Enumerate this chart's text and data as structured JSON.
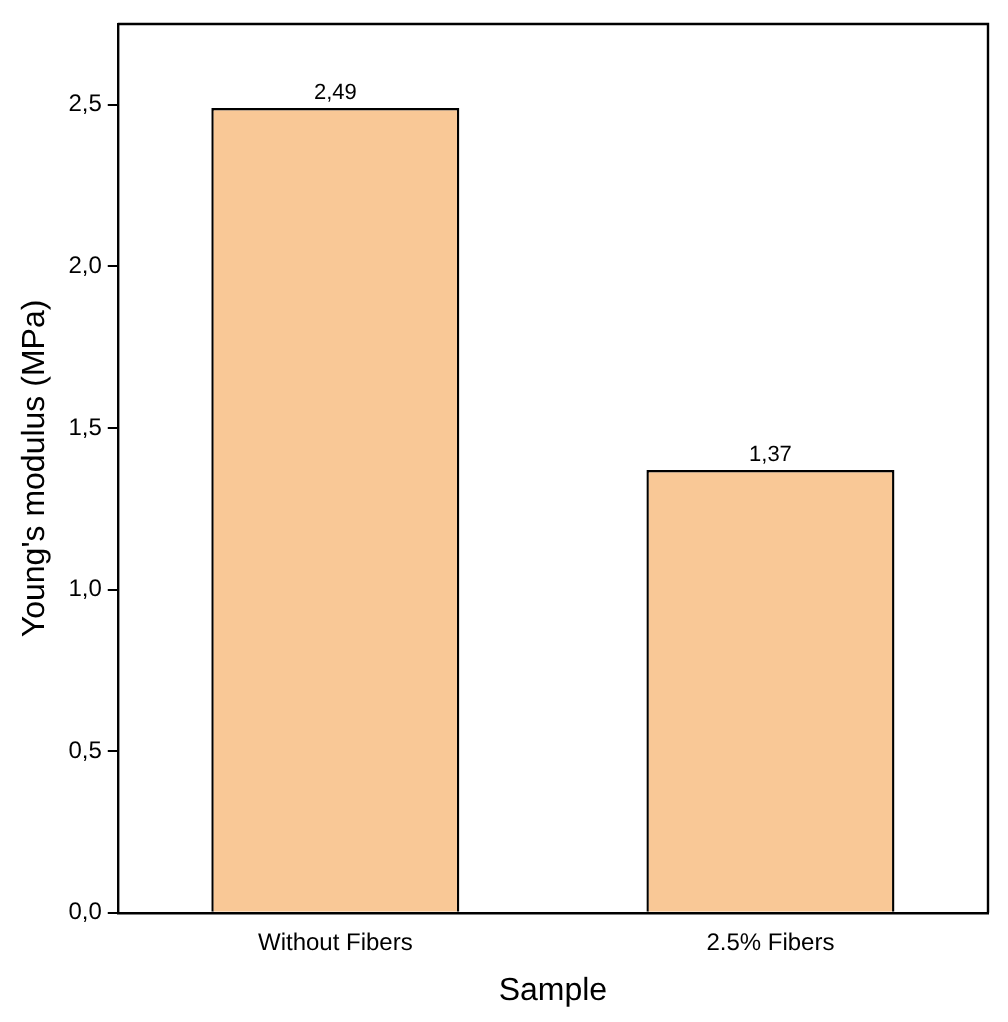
{
  "chart_data": {
    "type": "bar",
    "xlabel": "Sample",
    "ylabel": "Young's modulus (MPa)",
    "categories": [
      "Without Fibers",
      "2.5% Fibers"
    ],
    "values": [
      2.49,
      1.37
    ],
    "color": "#f9c896",
    "value_labels": [
      "2,49",
      "1,37"
    ],
    "ylim": [
      0,
      2.75
    ],
    "yticks": [
      {
        "value": 0,
        "label": "0,0"
      },
      {
        "value": 0.5,
        "label": "0,5"
      },
      {
        "value": 1,
        "label": "1,0"
      },
      {
        "value": 1.5,
        "label": "1,5"
      },
      {
        "value": 2,
        "label": "2,0"
      },
      {
        "value": 2.5,
        "label": "2,5"
      }
    ],
    "grid": false,
    "legend": false
  }
}
